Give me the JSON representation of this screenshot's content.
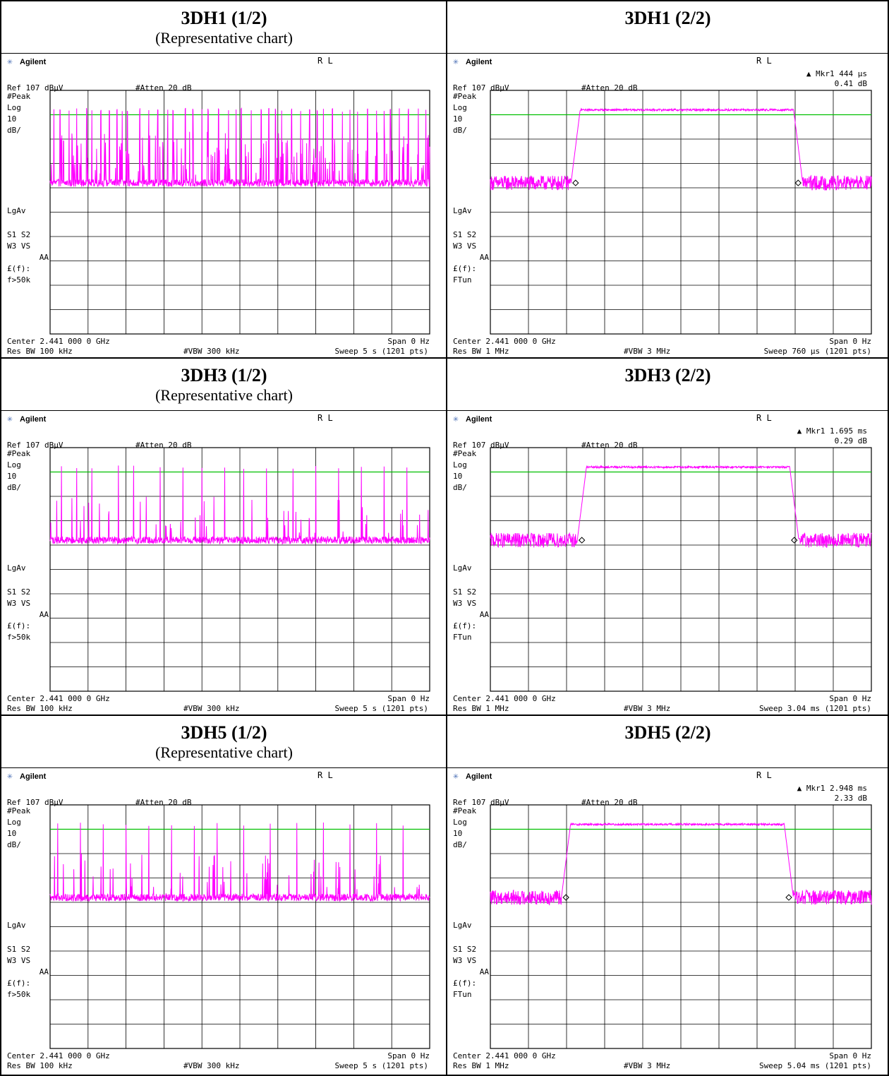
{
  "cells": [
    {
      "title": "3DH1 (1/2)",
      "subtitle": "(Representative chart)",
      "screen": {
        "brand": "Agilent",
        "rl": "R L",
        "marker": "",
        "marker_value": "",
        "ref": "Ref 107 dBµV",
        "atten": "#Atten 20 dB",
        "side": [
          "#Peak",
          "Log",
          "10",
          "dB/",
          "LgAv",
          "S1  S2",
          "W3  VS",
          "AA",
          "£(f):",
          "f>50k"
        ],
        "center": "Center 2.441 000 0 GHz",
        "span": "Span 0 Hz",
        "resbw": "Res BW 100 kHz",
        "vbw": "#VBW 300 kHz",
        "sweep": "Sweep 5 s (1201 pts)"
      }
    },
    {
      "title": "3DH1 (2/2)",
      "subtitle": "",
      "screen": {
        "brand": "Agilent",
        "rl": "R L",
        "marker": "▲ Mkr1    444 µs",
        "marker_value": "0.41 dB",
        "ref": "Ref 107 dBµV",
        "atten": "#Atten 20 dB",
        "side": [
          "#Peak",
          "Log",
          "10",
          "dB/",
          "LgAv",
          "S1  S2",
          "W3  VS",
          "AA",
          "£(f):",
          "FTun"
        ],
        "center": "Center 2.441 000 0 GHz",
        "span": "Span 0 Hz",
        "resbw": "Res BW 1 MHz",
        "vbw": "#VBW 3 MHz",
        "sweep": "Sweep 760 µs (1201 pts)"
      }
    },
    {
      "title": "3DH3 (1/2)",
      "subtitle": "(Representative chart)",
      "screen": {
        "brand": "Agilent",
        "rl": "R L",
        "marker": "",
        "marker_value": "",
        "ref": "Ref 107 dBµV",
        "atten": "#Atten 20 dB",
        "side": [
          "#Peak",
          "Log",
          "10",
          "dB/",
          "LgAv",
          "S1  S2",
          "W3  VS",
          "AA",
          "£(f):",
          "f>50k"
        ],
        "center": "Center 2.441 000 0 GHz",
        "span": "Span 0 Hz",
        "resbw": "Res BW 100 kHz",
        "vbw": "#VBW 300 kHz",
        "sweep": "Sweep 5 s (1201 pts)"
      }
    },
    {
      "title": "3DH3 (2/2)",
      "subtitle": "",
      "screen": {
        "brand": "Agilent",
        "rl": "R L",
        "marker": "▲ Mkr1   1.695 ms",
        "marker_value": "0.29 dB",
        "ref": "Ref 107 dBµV",
        "atten": "#Atten 20 dB",
        "side": [
          "#Peak",
          "Log",
          "10",
          "dB/",
          "LgAv",
          "S1  S2",
          "W3  VS",
          "AA",
          "£(f):",
          "FTun"
        ],
        "center": "Center 2.441 000 0 GHz",
        "span": "Span 0 Hz",
        "resbw": "Res BW 1 MHz",
        "vbw": "#VBW 3 MHz",
        "sweep": "Sweep 3.04 ms (1201 pts)"
      }
    },
    {
      "title": "3DH5 (1/2)",
      "subtitle": "(Representative chart)",
      "screen": {
        "brand": "Agilent",
        "rl": "R L",
        "marker": "",
        "marker_value": "",
        "ref": "Ref 107 dBµV",
        "atten": "#Atten 20 dB",
        "side": [
          "#Peak",
          "Log",
          "10",
          "dB/",
          "LgAv",
          "S1  S2",
          "W3  VS",
          "AA",
          "£(f):",
          "f>50k"
        ],
        "center": "Center 2.441 000 0 GHz",
        "span": "Span 0 Hz",
        "resbw": "Res BW 100 kHz",
        "vbw": "#VBW 300 kHz",
        "sweep": "Sweep 5 s (1201 pts)"
      }
    },
    {
      "title": "3DH5 (2/2)",
      "subtitle": "",
      "screen": {
        "brand": "Agilent",
        "rl": "R L",
        "marker": "▲ Mkr1   2.948 ms",
        "marker_value": "2.33 dB",
        "ref": "Ref 107 dBµV",
        "atten": "#Atten 20 dB",
        "side": [
          "#Peak",
          "Log",
          "10",
          "dB/",
          "LgAv",
          "S1  S2",
          "W3  VS",
          "AA",
          "£(f):",
          "FTun"
        ],
        "center": "Center 2.441 000 0 GHz",
        "span": "Span 0 Hz",
        "resbw": "Res BW 1 MHz",
        "vbw": "#VBW 3 MHz",
        "sweep": "Sweep 5.04 ms (1201 pts)"
      }
    }
  ],
  "colors": {
    "trace": "#ff00ff",
    "display_line": "#00c000",
    "grid": "#000000"
  },
  "chart_data": [
    {
      "type": "line",
      "mode": "zero-span burst train",
      "ref_level_dBuV": 107,
      "scale_dB_per_div": 10,
      "divisions": 10,
      "ylim_dBuV": [
        7,
        107
      ],
      "xlim_s": [
        0,
        5
      ],
      "display_line_dBuV": 97,
      "noise_floor_dBuV": 69,
      "burst_peak_dBuV": 99,
      "burst_times_s": [
        0.05,
        0.13,
        0.25,
        0.35,
        0.48,
        0.55,
        0.67,
        0.78,
        0.88,
        0.95,
        1.02,
        1.18,
        1.3,
        1.42,
        1.55,
        1.62,
        1.78,
        1.88,
        2.0,
        2.08,
        2.22,
        2.35,
        2.45,
        2.52,
        2.65,
        2.78,
        2.88,
        2.97,
        3.05,
        3.18,
        3.3,
        3.42,
        3.52,
        3.6,
        3.72,
        3.85,
        3.95,
        4.05,
        4.18,
        4.3,
        4.4,
        4.48,
        4.6,
        4.72,
        4.85,
        4.95
      ]
    },
    {
      "type": "line",
      "mode": "zero-span single burst",
      "ref_level_dBuV": 107,
      "scale_dB_per_div": 10,
      "divisions": 10,
      "ylim_dBuV": [
        7,
        107
      ],
      "xlim_us": [
        0,
        760
      ],
      "display_line_dBuV": 97,
      "noise_floor_dBuV": 69,
      "burst_level_dBuV": 99,
      "burst_start_us": 170,
      "burst_end_us": 614,
      "marker": {
        "delta_time_us": 444,
        "delta_level_dB": 0.41
      }
    },
    {
      "type": "line",
      "mode": "zero-span burst train",
      "ref_level_dBuV": 107,
      "scale_dB_per_div": 10,
      "divisions": 10,
      "ylim_dBuV": [
        7,
        107
      ],
      "xlim_s": [
        0,
        5
      ],
      "display_line_dBuV": 97,
      "noise_floor_dBuV": 69,
      "burst_peak_dBuV": 99,
      "burst_times_s": [
        0.15,
        0.35,
        0.55,
        0.9,
        1.1,
        1.45,
        1.75,
        2.0,
        2.3,
        2.55,
        2.85,
        3.2,
        3.5,
        3.8,
        4.1,
        4.4,
        4.7
      ]
    },
    {
      "type": "line",
      "mode": "zero-span single burst",
      "ref_level_dBuV": 107,
      "scale_dB_per_div": 10,
      "divisions": 10,
      "ylim_dBuV": [
        7,
        107
      ],
      "xlim_ms": [
        0,
        3.04
      ],
      "display_line_dBuV": 97,
      "noise_floor_dBuV": 69,
      "burst_level_dBuV": 99,
      "burst_start_ms": 0.73,
      "burst_end_ms": 2.425,
      "marker": {
        "delta_time_ms": 1.695,
        "delta_level_dB": 0.29
      }
    },
    {
      "type": "line",
      "mode": "zero-span burst train",
      "ref_level_dBuV": 107,
      "scale_dB_per_div": 10,
      "divisions": 10,
      "ylim_dBuV": [
        7,
        107
      ],
      "xlim_s": [
        0,
        5
      ],
      "display_line_dBuV": 97,
      "noise_floor_dBuV": 69,
      "burst_peak_dBuV": 99,
      "burst_times_s": [
        0.1,
        0.4,
        0.7,
        1.0,
        1.3,
        1.6,
        1.9,
        2.2,
        2.55,
        2.9,
        3.25,
        3.6,
        3.95,
        4.3,
        4.65
      ]
    },
    {
      "type": "line",
      "mode": "zero-span single burst",
      "ref_level_dBuV": 107,
      "scale_dB_per_div": 10,
      "divisions": 10,
      "ylim_dBuV": [
        7,
        107
      ],
      "xlim_ms": [
        0,
        5.04
      ],
      "display_line_dBuV": 97,
      "noise_floor_dBuV": 69,
      "burst_level_dBuV": 99,
      "burst_start_ms": 1.0,
      "burst_end_ms": 3.948,
      "marker": {
        "delta_time_ms": 2.948,
        "delta_level_dB": 2.33
      }
    }
  ]
}
